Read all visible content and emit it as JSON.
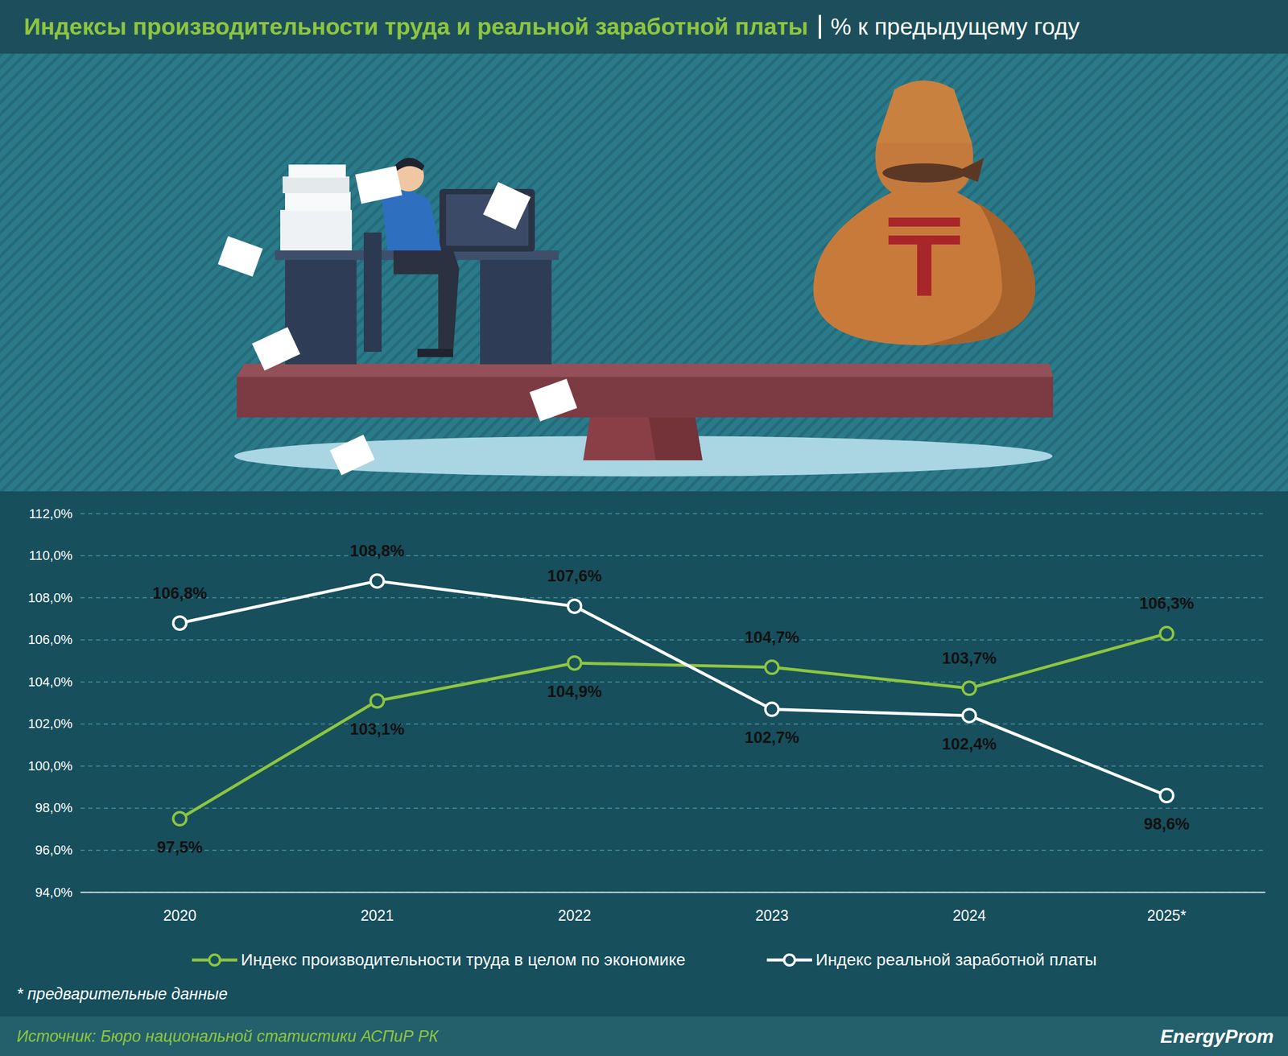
{
  "chart_data": {
    "type": "line",
    "title": "Индексы производительности труда и реальной заработной платы",
    "subtitle": "% к предыдущему году",
    "categories": [
      "2020",
      "2021",
      "2022",
      "2023",
      "2024",
      "2025*"
    ],
    "series": [
      {
        "name": "Индекс производительности труда в целом по экономике",
        "color": "#8dc63f",
        "marker": "circle",
        "line_style": "solid",
        "values": [
          97.5,
          103.1,
          104.9,
          104.7,
          103.7,
          106.3
        ],
        "value_labels": [
          "97,5%",
          "103,1%",
          "104,9%",
          "104,7%",
          "103,7%",
          "106,3%"
        ]
      },
      {
        "name": "Индекс реальной заработной платы",
        "color": "#ffffff",
        "marker": "circle",
        "line_style": "solid",
        "values": [
          106.8,
          108.8,
          107.6,
          102.7,
          102.4,
          98.6
        ],
        "value_labels": [
          "106,8%",
          "108,8%",
          "107,6%",
          "102,7%",
          "102,4%",
          "98,6%"
        ]
      }
    ],
    "ylim": [
      94,
      112
    ],
    "yticks": [
      {
        "value": 94,
        "label": "94,0%"
      },
      {
        "value": 96,
        "label": "96,0%"
      },
      {
        "value": 98,
        "label": "98,0%"
      },
      {
        "value": 100,
        "label": "100,0%"
      },
      {
        "value": 102,
        "label": "102,0%"
      },
      {
        "value": 104,
        "label": "104,0%"
      },
      {
        "value": 106,
        "label": "106,0%"
      },
      {
        "value": 108,
        "label": "108,0%"
      },
      {
        "value": 110,
        "label": "110,0%"
      },
      {
        "value": 112,
        "label": "112,0%"
      }
    ],
    "grid": true,
    "legend": "bottom",
    "data_labels": true,
    "footnote": "* предварительные данные",
    "source": "Источник: Бюро национальной статистики АСПиР РК",
    "brand": "EnergyProm"
  }
}
